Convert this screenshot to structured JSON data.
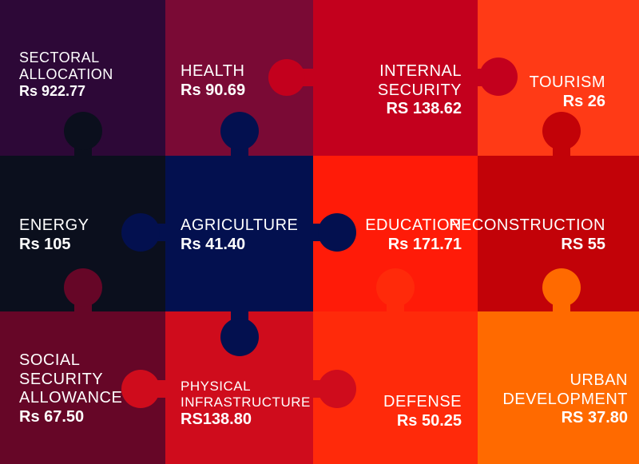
{
  "title": {
    "line1": "SECTORAL",
    "line2": "ALLOCATION",
    "amount": "Rs 922.77"
  },
  "tiles": [
    {
      "name": "HEALTH",
      "amount": "Rs 90.69",
      "color": "#7a0a35"
    },
    {
      "name": "INTERNAL\nSECURITY",
      "amount": "RS 138.62",
      "color": "#c3001d"
    },
    {
      "name": "TOURISM",
      "amount": "Rs 26",
      "color": "#ff3a16"
    },
    {
      "name": "ENERGY",
      "amount": "Rs 105",
      "color": "#0b0f1d"
    },
    {
      "name": "AGRICULTURE",
      "amount": "Rs 41.40",
      "color": "#03104f"
    },
    {
      "name": "EDUCATION",
      "amount": "Rs 171.71",
      "color": "#ff1b08"
    },
    {
      "name": "RECONSTRUCTION",
      "amount": "RS 55",
      "color": "#c20208"
    },
    {
      "name": "SOCIAL\nSECURITY\nALLOWANCE",
      "amount": "Rs 67.50",
      "color": "#660627"
    },
    {
      "name": "PHYSICAL\nINFRASTRUCTURE",
      "amount": "RS138.80",
      "color": "#cf0c1c"
    },
    {
      "name": "DEFENSE",
      "amount": "Rs 50.25",
      "color": "#ff2a0a"
    },
    {
      "name": "URBAN\nDEVELOPMENT",
      "amount": "RS 37.80",
      "color": "#ff6a00"
    }
  ],
  "colors": {
    "title_tile": "#2d0837"
  }
}
